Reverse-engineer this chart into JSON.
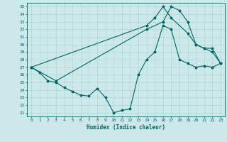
{
  "xlabel": "Humidex (Indice chaleur)",
  "bg_color": "#cce8e8",
  "line_color": "#006666",
  "grid_color": "#b0d8d8",
  "xlim": [
    -0.5,
    23.5
  ],
  "ylim": [
    20.5,
    35.5
  ],
  "yticks": [
    21,
    22,
    23,
    24,
    25,
    26,
    27,
    28,
    29,
    30,
    31,
    32,
    33,
    34,
    35
  ],
  "xticks": [
    0,
    1,
    2,
    3,
    4,
    5,
    6,
    7,
    8,
    9,
    10,
    11,
    12,
    13,
    14,
    15,
    16,
    17,
    18,
    19,
    20,
    21,
    22,
    23
  ],
  "line1_x": [
    0,
    1,
    2,
    3,
    4,
    5,
    6,
    7,
    8,
    9,
    10,
    11,
    12,
    13,
    14,
    15,
    16,
    17,
    18,
    19,
    20,
    21,
    22,
    23
  ],
  "line1_y": [
    27,
    26.3,
    25.2,
    25.0,
    24.3,
    23.8,
    23.3,
    23.2,
    24.2,
    23.0,
    21.0,
    21.3,
    21.5,
    26.0,
    28.0,
    29.0,
    32.5,
    32.0,
    28.0,
    27.5,
    27.0,
    27.2,
    27.0,
    27.5
  ],
  "line2_x": [
    0,
    3,
    14,
    16,
    17,
    18,
    19,
    20,
    21,
    22,
    23
  ],
  "line2_y": [
    27,
    25.2,
    32.0,
    33.0,
    35.0,
    34.5,
    33.0,
    30.0,
    29.5,
    29.0,
    27.5
  ],
  "line3_x": [
    0,
    14,
    15,
    16,
    17,
    19,
    20,
    21,
    22,
    23
  ],
  "line3_y": [
    27,
    32.5,
    33.5,
    35.0,
    33.5,
    31.5,
    30.0,
    29.5,
    29.5,
    27.5
  ]
}
